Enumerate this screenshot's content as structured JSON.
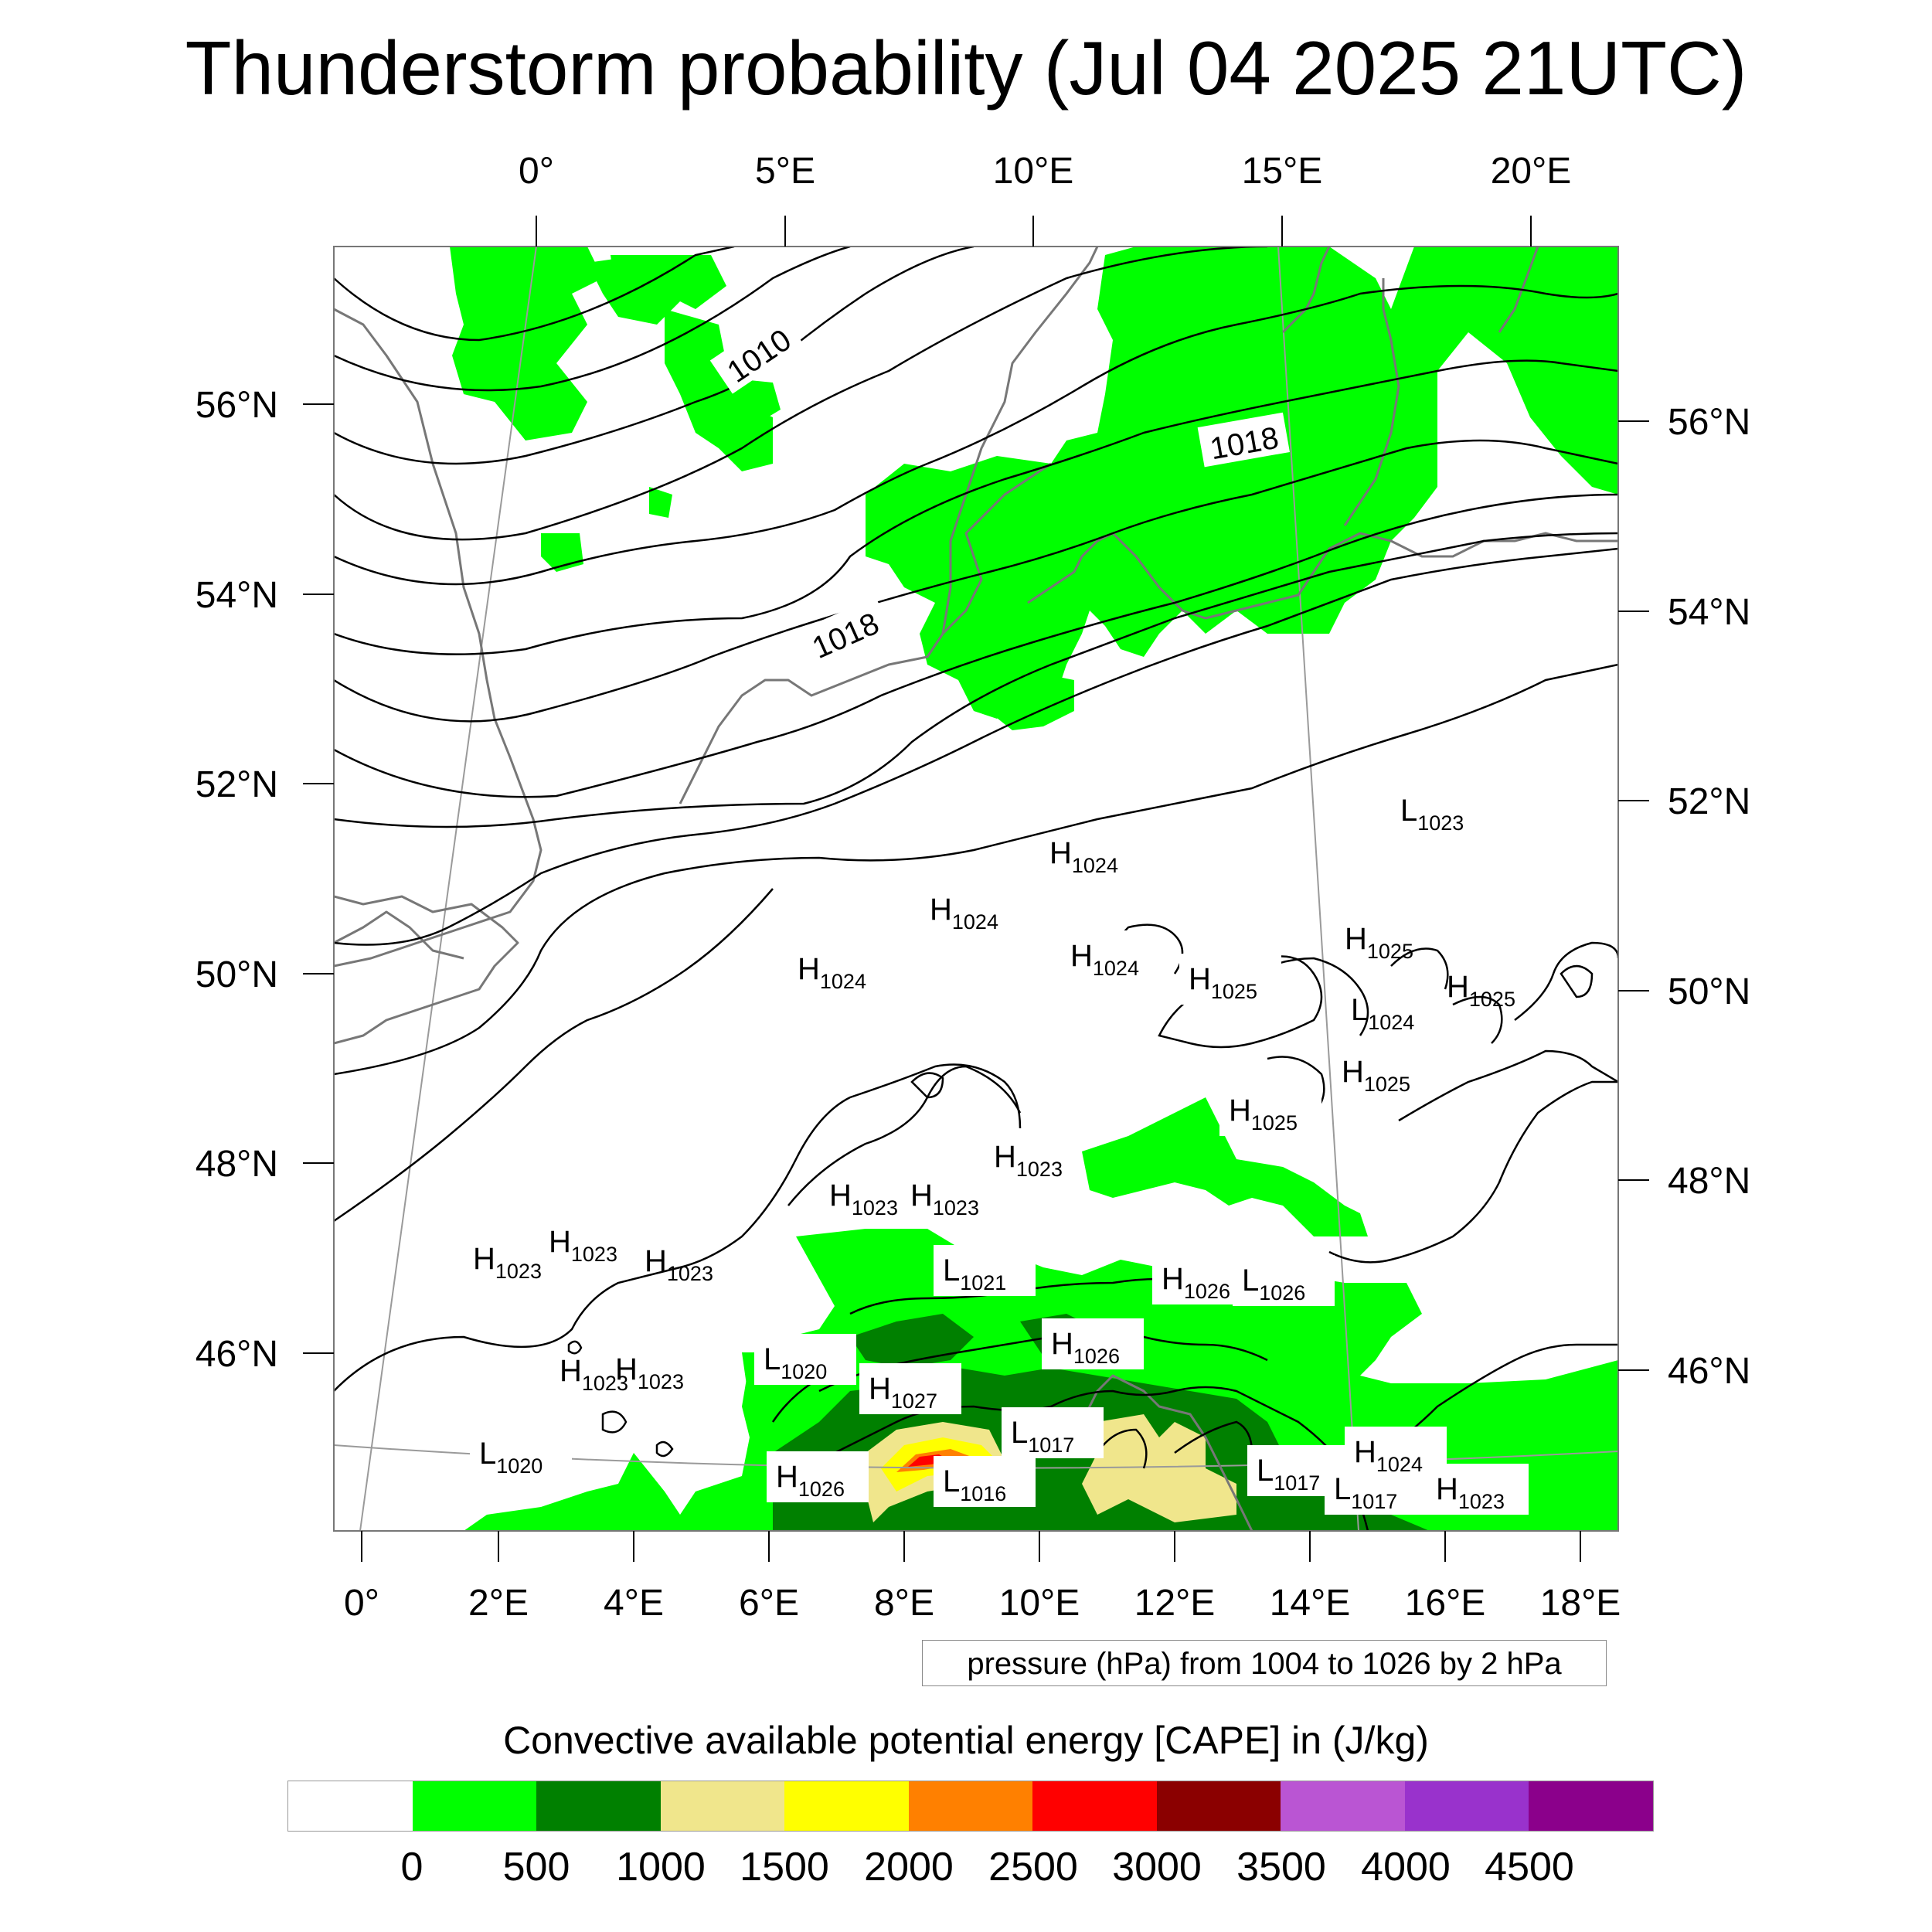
{
  "title": "Thunderstorm probability (Jul 04 2025 21UTC)",
  "map": {
    "region": "Central Europe",
    "top_axis_labels": [
      "0°",
      "5°E",
      "10°E",
      "15°E",
      "20°E"
    ],
    "bottom_axis_labels": [
      "0°",
      "2°E",
      "4°E",
      "6°E",
      "8°E",
      "10°E",
      "12°E",
      "14°E",
      "16°E",
      "18°E"
    ],
    "left_axis_labels": [
      "56°N",
      "54°N",
      "52°N",
      "50°N",
      "48°N",
      "46°N"
    ],
    "right_axis_labels": [
      "56°N",
      "54°N",
      "52°N",
      "50°N",
      "48°N",
      "46°N"
    ],
    "contour_labels": [
      "1010",
      "1018",
      "1018"
    ],
    "pressure_centers": [
      {
        "type": "L",
        "value": "1023"
      },
      {
        "type": "H",
        "value": "1024"
      },
      {
        "type": "H",
        "value": "1024"
      },
      {
        "type": "H",
        "value": "1024"
      },
      {
        "type": "H",
        "value": "1024"
      },
      {
        "type": "H",
        "value": "1025"
      },
      {
        "type": "H",
        "value": "1025"
      },
      {
        "type": "L",
        "value": "1024"
      },
      {
        "type": "H",
        "value": "1025"
      },
      {
        "type": "H",
        "value": "1025"
      },
      {
        "type": "H",
        "value": "1025"
      },
      {
        "type": "H",
        "value": "1023"
      },
      {
        "type": "H",
        "value": "1023"
      },
      {
        "type": "H",
        "value": "1023"
      },
      {
        "type": "H",
        "value": "1023"
      },
      {
        "type": "H",
        "value": "1023"
      },
      {
        "type": "H",
        "value": "1023"
      },
      {
        "type": "L",
        "value": "1021"
      },
      {
        "type": "H",
        "value": "1026"
      },
      {
        "type": "L",
        "value": "1026"
      },
      {
        "type": "H",
        "value": "1026"
      },
      {
        "type": "L",
        "value": "1020"
      },
      {
        "type": "H",
        "value": "1027"
      },
      {
        "type": "H",
        "value": "1023"
      },
      {
        "type": "H",
        "value": "1023"
      },
      {
        "type": "L",
        "value": "1017"
      },
      {
        "type": "L",
        "value": "1020"
      },
      {
        "type": "H",
        "value": "1026"
      },
      {
        "type": "L",
        "value": "1016"
      },
      {
        "type": "L",
        "value": "1017"
      },
      {
        "type": "L",
        "value": "1017"
      },
      {
        "type": "H",
        "value": "1024"
      },
      {
        "type": "H",
        "value": "1023"
      }
    ]
  },
  "contour_note": "pressure (hPa) from 1004 to 1026 by 2 hPa",
  "legend": {
    "title": "Convective available potential energy [CAPE] in (J/kg)",
    "colors": [
      "#ffffff",
      "#00ff00",
      "#008000",
      "#f0e68c",
      "#ffff00",
      "#ff8000",
      "#ff0000",
      "#8b0000",
      "#ba55d3",
      "#9932cc",
      "#8b008b"
    ],
    "labels": [
      "0",
      "500",
      "1000",
      "1500",
      "2000",
      "2500",
      "3000",
      "3500",
      "4000",
      "4500"
    ]
  }
}
